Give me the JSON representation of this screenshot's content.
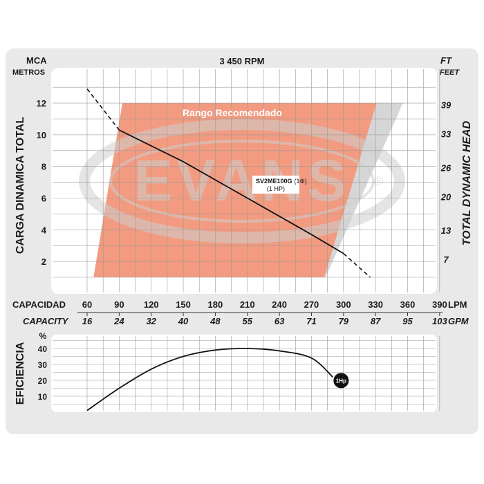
{
  "colors": {
    "panel": "#e9e9e9",
    "plot_bg": "#ffffff",
    "grid": "#9a9a9a",
    "range_fill": "#f08a6a",
    "watermark": "#cfcfcf",
    "curve": "#111111"
  },
  "header": {
    "left_unit": "MCA",
    "left_unit_sub": "METROS",
    "speed": "3 450 RPM",
    "right_unit": "FT",
    "right_unit_sub": "FEET"
  },
  "watermark_text": "EVANS",
  "watermark_mark": "®",
  "range_label": "Rango Recomendado",
  "model_label": {
    "model": "SV2ME100G",
    "phase": "(1Φ)",
    "power": "(1 HP)"
  },
  "capacity_axis": {
    "label_es": "CAPACIDAD",
    "unit_lpm": "LPM",
    "label_en": "CAPACITY",
    "unit_gpm": "GPM",
    "lpm_ticks": [
      "60",
      "90",
      "120",
      "150",
      "180",
      "210",
      "240",
      "270",
      "300",
      "330",
      "360",
      "390"
    ],
    "gpm_ticks": [
      "16",
      "24",
      "32",
      "40",
      "48",
      "55",
      "63",
      "71",
      "79",
      "87",
      "95",
      "103"
    ]
  },
  "efficiency_axis": {
    "title": "EFICIENCIA",
    "unit": "%",
    "ticks": [
      "10",
      "20",
      "30",
      "40"
    ]
  },
  "badge": "1Hp",
  "chart_data": [
    {
      "type": "line",
      "title": "3 450 RPM",
      "xlabel": "CAPACIDAD / CAPACITY",
      "x_unit": "LPM",
      "xlim": [
        60,
        390
      ],
      "ylabel": "CARGA DINAMICA TOTAL",
      "y_unit": "MCA",
      "ylim": [
        0,
        13
      ],
      "y_ticks": [
        2,
        4,
        6,
        8,
        10,
        12
      ],
      "y2label": "TOTAL DYNAMIC HEAD",
      "y2_unit": "FT",
      "y2_ticks": [
        7,
        13,
        20,
        26,
        33,
        39
      ],
      "grid": true,
      "recommended_range": {
        "label": "Rango Recomendado",
        "x_bottom": [
          66,
          282
        ],
        "x_top": [
          93,
          331
        ],
        "y_range": [
          1,
          12
        ]
      },
      "series": [
        {
          "name": "SV2ME100G",
          "x": [
            60,
            90,
            150,
            210,
            270,
            300,
            325
          ],
          "y": [
            12.9,
            10.3,
            8.3,
            6.0,
            3.7,
            2.5,
            1.0
          ],
          "solid_range": [
            90,
            300
          ]
        }
      ]
    },
    {
      "type": "line",
      "xlabel": "CAPACIDAD / CAPACITY",
      "x_unit": "LPM",
      "xlim": [
        60,
        390
      ],
      "ylabel": "EFICIENCIA",
      "y_unit": "%",
      "ylim": [
        0,
        50
      ],
      "y_ticks": [
        10,
        20,
        30,
        40
      ],
      "grid": true,
      "series": [
        {
          "name": "1Hp",
          "x": [
            60,
            90,
            120,
            150,
            180,
            210,
            240,
            270,
            290
          ],
          "y": [
            1,
            15,
            27,
            35,
            39,
            40,
            38.5,
            34,
            22
          ]
        }
      ]
    }
  ]
}
